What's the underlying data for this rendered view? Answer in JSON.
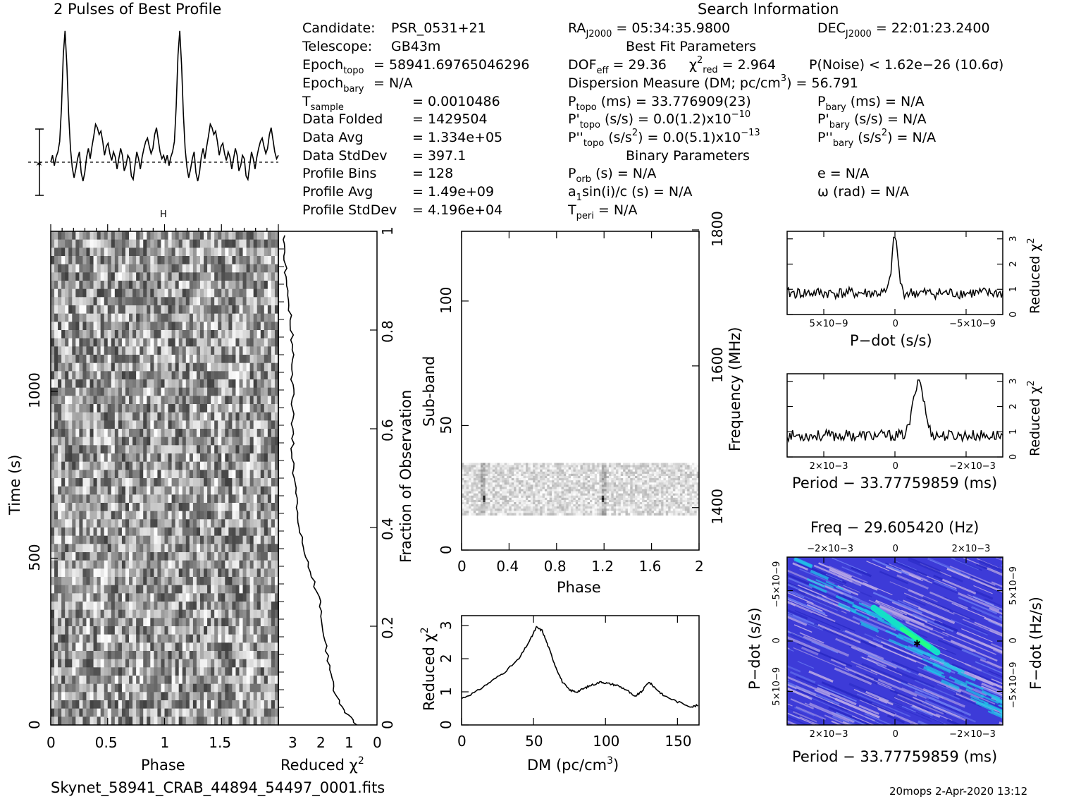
{
  "title_left": "2 Pulses of Best Profile",
  "title_right": "Search Information",
  "footer_file": "Skynet_58941_CRAB_44894_54497_0001.fits",
  "footer_stamp": "20mops   2-Apr-2020 13:12",
  "colors": {
    "fg": "#000000",
    "bg": "#ffffff",
    "ppdot_base": "#3d3bd8",
    "ppdot_hot": "#14e0c8",
    "ppdot_light": "#b7a6e6"
  },
  "info": {
    "col1": [
      {
        "label": "Candidate:",
        "value": "PSR_0531+21"
      },
      {
        "label": "Telescope:",
        "value": "GB43m"
      },
      {
        "label": "Epoch",
        "sub": "topo",
        "value": "= 58941.69765046296"
      },
      {
        "label": "Epoch",
        "sub": "bary",
        "value": "= N/A"
      },
      {
        "label": "T",
        "sub": "sample",
        "value": "=   0.0010486"
      },
      {
        "label": "Data Folded",
        "value": "=   1429504"
      },
      {
        "label": "Data Avg",
        "value": "=   1.334e+05"
      },
      {
        "label": "Data StdDev",
        "value": "=   397.1"
      },
      {
        "label": "Profile Bins",
        "value": "=   128"
      },
      {
        "label": "Profile Avg",
        "value": "=   1.49e+09"
      },
      {
        "label": "Profile StdDev",
        "value": "=   4.196e+04"
      }
    ],
    "ra": {
      "label": "RA",
      "sub": "J2000",
      "value": "= 05:34:35.9800"
    },
    "dec": {
      "label": "DEC",
      "sub": "J2000",
      "value": "= 22:01:23.2400"
    },
    "best_fit_title": "Best Fit Parameters",
    "dof": {
      "label": "DOF",
      "sub": "eff",
      "value": "= 29.36"
    },
    "chi2": {
      "label": "χ",
      "sup": "2",
      "sub": "red",
      "value": "= 2.964"
    },
    "pnoise": "P(Noise) < 1.62e−26   (10.6σ)",
    "dm_line": {
      "text": "Dispersion Measure (DM; pc/cm",
      "sup": "3",
      "tail": ") = 56.791"
    },
    "ptopo": {
      "label": "P",
      "sub": "topo",
      "value": "(ms) =  33.776909(23)"
    },
    "pbary": {
      "label": "P",
      "sub": "bary",
      "value": "(ms) = N/A"
    },
    "pdtopo": {
      "label": "P'",
      "sub": "topo",
      "value": "(s/s) = 0.0(1.2)x10",
      "sup": "−10"
    },
    "pdbary": {
      "label": "P'",
      "sub": "bary",
      "value": "(s/s) = N/A"
    },
    "pddtopo": {
      "label": "P''",
      "sub": "topo",
      "value": "(s/s",
      "sup2": "2",
      "value2": ") = 0.0(5.1)x10",
      "sup": "−13"
    },
    "pddbary": {
      "label": "P''",
      "sub": "bary",
      "value": "(s/s",
      "sup2": "2",
      "value2": ") = N/A"
    },
    "binary_title": "Binary Parameters",
    "porb": {
      "label": "P",
      "sub": "orb",
      "value": "(s) = N/A"
    },
    "ecc": "e = N/A",
    "a1": {
      "label": "a",
      "sub": "1",
      "value": "sin(i)/c (s) = N/A"
    },
    "omega": "ω (rad) = N/A",
    "tperi": {
      "label": "T",
      "sub": "peri",
      "value": "= N/A"
    }
  },
  "chart_data": [
    {
      "type": "line",
      "name": "profile",
      "title": "2 Pulses of Best Profile",
      "x": "phase 0-2 (128 bins x2)",
      "peaks": [
        0.18,
        1.18
      ],
      "ylim": [
        -1,
        8
      ],
      "values": [
        0,
        0.4,
        -0.2,
        0.3,
        0.6,
        1.2,
        3.2,
        6.2,
        7.6,
        5.6,
        2.8,
        0.8,
        -0.3,
        -0.9,
        -0.4,
        0.2,
        0.6,
        -0.6,
        -1.1,
        -0.6,
        0.3,
        0.8,
        0.2,
        0.9,
        1.5,
        2.2,
        2.0,
        1.6,
        1.8,
        1.2,
        0.4,
        0.9,
        1.1,
        0.5,
        0.1,
        0.6,
        0.3,
        -0.4,
        0.2,
        0.8,
        0.4,
        -0.5,
        -0.2,
        0.4,
        0.2,
        -0.8,
        -1.0,
        -0.2,
        0.6,
        0.2,
        -0.4,
        0.3,
        0.8,
        1.2,
        1.4,
        0.9,
        0.5,
        0.8,
        1.6,
        2.0,
        1.3,
        0.6,
        0.2,
        0.4
      ]
    },
    {
      "type": "heatmap",
      "name": "time-phase",
      "xlabel": "Phase",
      "ylabel": "Time (s)",
      "xticks": [
        "0",
        "0.5",
        "1",
        "1.5"
      ],
      "yticks": [
        "0",
        "500",
        "1000"
      ],
      "ylim": [
        0,
        1480
      ],
      "rows": 64,
      "cols": 64
    },
    {
      "type": "line",
      "name": "chi2-vs-time",
      "xlabel": "Reduced χ2",
      "ylabel": "Fraction of Observation",
      "xticks": [
        "3",
        "2",
        "1",
        "0"
      ],
      "yticks": [
        "0",
        "0.2",
        "0.4",
        "0.6",
        "0.8",
        "1"
      ],
      "xlim": [
        3.5,
        0
      ],
      "points": [
        [
          0.7,
          0
        ],
        [
          1.2,
          0.03
        ],
        [
          1.5,
          0.07
        ],
        [
          1.7,
          0.12
        ],
        [
          1.9,
          0.18
        ],
        [
          2.0,
          0.24
        ],
        [
          2.3,
          0.3
        ],
        [
          2.6,
          0.36
        ],
        [
          2.8,
          0.42
        ],
        [
          2.9,
          0.48
        ],
        [
          3.0,
          0.54
        ],
        [
          3.0,
          0.6
        ],
        [
          3.0,
          0.66
        ],
        [
          3.0,
          0.72
        ],
        [
          3.0,
          0.78
        ],
        [
          3.1,
          0.84
        ],
        [
          3.2,
          0.9
        ],
        [
          3.3,
          0.95
        ],
        [
          3.3,
          1.0
        ]
      ]
    },
    {
      "type": "heatmap",
      "name": "subband-phase",
      "xlabel": "Phase",
      "ylabel": "Sub-band",
      "rlabel": "Frequency (MHz)",
      "xticks": [
        "0",
        "0.4",
        "0.8",
        "1.2",
        "1.6",
        "2"
      ],
      "yticks": [
        "0",
        "50",
        "100"
      ],
      "rticks": [
        "1400",
        "1600",
        "1800"
      ],
      "ylim": [
        0,
        128
      ],
      "data_rows": [
        14,
        35
      ]
    },
    {
      "type": "line",
      "name": "chi2-vs-dm",
      "xlabel": "DM (pc/cm3)",
      "ylabel": "Reduced χ2",
      "xticks": [
        "0",
        "50",
        "100",
        "150"
      ],
      "yticks": [
        "0",
        "1",
        "2",
        "3"
      ],
      "xlim": [
        0,
        165
      ],
      "ylim": [
        0,
        3.3
      ],
      "points": [
        [
          0,
          0.8
        ],
        [
          10,
          1.0
        ],
        [
          20,
          1.3
        ],
        [
          30,
          1.6
        ],
        [
          40,
          2.0
        ],
        [
          48,
          2.6
        ],
        [
          52,
          2.95
        ],
        [
          56,
          2.85
        ],
        [
          60,
          2.4
        ],
        [
          65,
          1.8
        ],
        [
          70,
          1.3
        ],
        [
          75,
          1.05
        ],
        [
          80,
          1.0
        ],
        [
          85,
          1.1
        ],
        [
          90,
          1.2
        ],
        [
          97,
          1.3
        ],
        [
          102,
          1.25
        ],
        [
          108,
          1.2
        ],
        [
          115,
          1.05
        ],
        [
          120,
          0.85
        ],
        [
          125,
          1.0
        ],
        [
          130,
          1.3
        ],
        [
          135,
          1.1
        ],
        [
          140,
          0.9
        ],
        [
          150,
          0.7
        ],
        [
          160,
          0.55
        ],
        [
          165,
          0.6
        ]
      ]
    },
    {
      "type": "line",
      "name": "chi2-vs-pdot",
      "xlabel": "P−dot (s/s)",
      "ylabel": "Reduced χ2",
      "xticks": [
        "5×10−9",
        "0",
        "−5×10−9"
      ],
      "yticks": [
        "0",
        "1",
        "2",
        "3"
      ],
      "ylim": [
        0,
        3.3
      ],
      "peak_x": 0,
      "peak_y": 3.0,
      "baseline": 0.9
    },
    {
      "type": "line",
      "name": "chi2-vs-period",
      "xlabel": "Period − 33.77759859 (ms)",
      "ylabel": "Reduced χ2",
      "xticks": [
        "2×10−3",
        "0",
        "−2×10−3"
      ],
      "yticks": [
        "0",
        "1",
        "2",
        "3"
      ],
      "ylim": [
        0,
        3.3
      ],
      "peak_x": -0.0007,
      "peak_y": 3.0,
      "baseline": 0.85
    },
    {
      "type": "heatmap",
      "name": "period-pdot",
      "title": "Freq − 29.605420 (Hz)",
      "top_ticks": [
        "−2×10−3",
        "0",
        "2×10−3"
      ],
      "xlabel": "Period − 33.77759859 (ms)",
      "xticks": [
        "2×10−3",
        "0",
        "−2×10−3"
      ],
      "ylabel": "P−dot (s/s)",
      "yticks": [
        "−5×10−9",
        "0",
        "5×10−9"
      ],
      "rlabel": "F−dot (Hz/s)",
      "rticks": [
        "5×10−9",
        "0",
        "−5×10−9"
      ],
      "best": [
        -0.0007,
        0
      ]
    }
  ],
  "labels": {
    "phase": "Phase",
    "time": "Time (s)",
    "redchi": "Reduced χ",
    "two": "2",
    "frac": "Fraction of Observation",
    "subband": "Sub-band",
    "freq": "Frequency (MHz)",
    "dm": "DM (pc/cm",
    "dm_sup": "3",
    "dm_tail": ")",
    "pdot": "P−dot (s/s)",
    "period": "Period − 33.77759859 (ms)",
    "freqtitle": "Freq − 29.605420 (Hz)",
    "fdot": "F−dot (Hz/s)"
  }
}
